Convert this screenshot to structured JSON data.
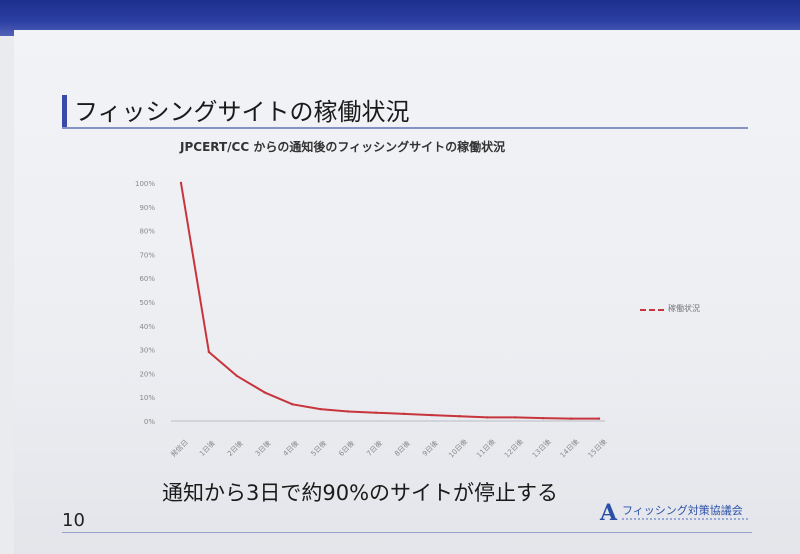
{
  "slide": {
    "title": "フィッシングサイトの稼働状況",
    "subtitle": "通知から3日で約90%のサイトが停止する",
    "page_number": "10",
    "logo_text": "フィッシング対策協議会"
  },
  "chart_data": {
    "type": "line",
    "title": "JPCERT/CC からの通知後のフィッシングサイトの稼働状況",
    "xlabel": "",
    "ylabel": "",
    "categories": [
      "発信日",
      "1日後",
      "2日後",
      "3日後",
      "4日後",
      "5日後",
      "6日後",
      "7日後",
      "8日後",
      "9日後",
      "10日後",
      "11日後",
      "12日後",
      "13日後",
      "14日後",
      "15日後"
    ],
    "y_ticks": [
      "0%",
      "10%",
      "20%",
      "30%",
      "40%",
      "50%",
      "60%",
      "70%",
      "80%",
      "90%",
      "100%"
    ],
    "ylim": [
      0,
      100
    ],
    "series": [
      {
        "name": "稼働状況",
        "color": "#c8343c",
        "values": [
          100,
          29,
          19,
          12,
          7,
          5,
          4,
          3.5,
          3,
          2.5,
          2,
          1.5,
          1.5,
          1.2,
          1,
          1
        ]
      }
    ],
    "legend_position": "right",
    "grid": false
  }
}
